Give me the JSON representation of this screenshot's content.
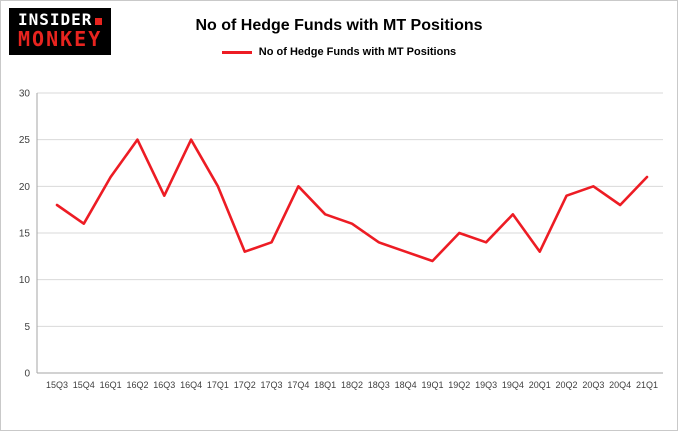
{
  "logo": {
    "line1": "INSIDER",
    "line2": "MONKEY"
  },
  "header": {
    "title": "No of Hedge Funds with MT Positions"
  },
  "legend": {
    "label": "No of Hedge Funds with MT Positions"
  },
  "colors": {
    "brand_red": "#e8241f",
    "logo_bg": "#000000"
  },
  "chart_data": {
    "type": "line",
    "title": "No of Hedge Funds with MT Positions",
    "categories": [
      "15Q3",
      "15Q4",
      "16Q1",
      "16Q2",
      "16Q3",
      "16Q4",
      "17Q1",
      "17Q2",
      "17Q3",
      "17Q4",
      "18Q1",
      "18Q2",
      "18Q3",
      "18Q4",
      "19Q1",
      "19Q2",
      "19Q3",
      "19Q4",
      "20Q1",
      "20Q2",
      "20Q3",
      "20Q4",
      "21Q1"
    ],
    "series": [
      {
        "name": "No of Hedge Funds with MT Positions",
        "values": [
          18,
          16,
          21,
          25,
          19,
          25,
          20,
          13,
          14,
          20,
          17,
          16,
          14,
          13,
          12,
          15,
          14,
          17,
          13,
          19,
          20,
          18,
          21
        ]
      }
    ],
    "xlabel": "",
    "ylabel": "",
    "ylim": [
      0,
      30
    ],
    "yticks": [
      0,
      5,
      10,
      15,
      20,
      25,
      30
    ],
    "grid": true,
    "legend_position": "top",
    "colors": {
      "line": "#ed1c24",
      "grid": "#d9d9d9",
      "axis": "#a6a6a6",
      "tick_text": "#404040"
    }
  }
}
